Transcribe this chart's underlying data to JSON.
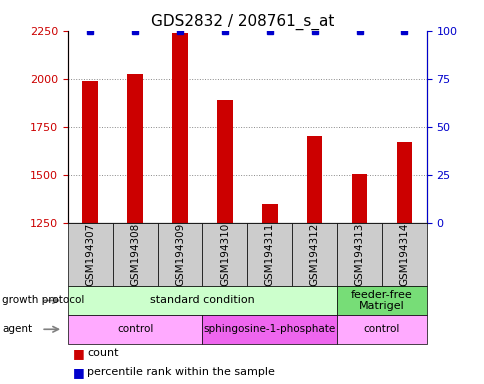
{
  "title": "GDS2832 / 208761_s_at",
  "samples": [
    "GSM194307",
    "GSM194308",
    "GSM194309",
    "GSM194310",
    "GSM194311",
    "GSM194312",
    "GSM194313",
    "GSM194314"
  ],
  "counts": [
    1990,
    2025,
    2240,
    1890,
    1345,
    1700,
    1505,
    1670
  ],
  "percentile_ranks": [
    100,
    100,
    100,
    100,
    100,
    100,
    100,
    100
  ],
  "ylim_left": [
    1250,
    2250
  ],
  "ylim_right": [
    0,
    100
  ],
  "yticks_left": [
    1250,
    1500,
    1750,
    2000,
    2250
  ],
  "yticks_right": [
    0,
    25,
    50,
    75,
    100
  ],
  "bar_color": "#cc0000",
  "dot_color": "#0000cc",
  "bar_width": 0.35,
  "grid_color": "#888888",
  "growth_protocol_labels": [
    {
      "text": "standard condition",
      "start": 0,
      "end": 6,
      "color": "#ccffcc"
    },
    {
      "text": "feeder-free\nMatrigel",
      "start": 6,
      "end": 8,
      "color": "#77dd77"
    }
  ],
  "agent_labels": [
    {
      "text": "control",
      "start": 0,
      "end": 3,
      "color": "#ffaaff"
    },
    {
      "text": "sphingosine-1-phosphate",
      "start": 3,
      "end": 6,
      "color": "#ee66ee"
    },
    {
      "text": "control",
      "start": 6,
      "end": 8,
      "color": "#ffaaff"
    }
  ],
  "sample_box_color": "#cccccc",
  "left_axis_color": "#cc0000",
  "right_axis_color": "#0000cc"
}
